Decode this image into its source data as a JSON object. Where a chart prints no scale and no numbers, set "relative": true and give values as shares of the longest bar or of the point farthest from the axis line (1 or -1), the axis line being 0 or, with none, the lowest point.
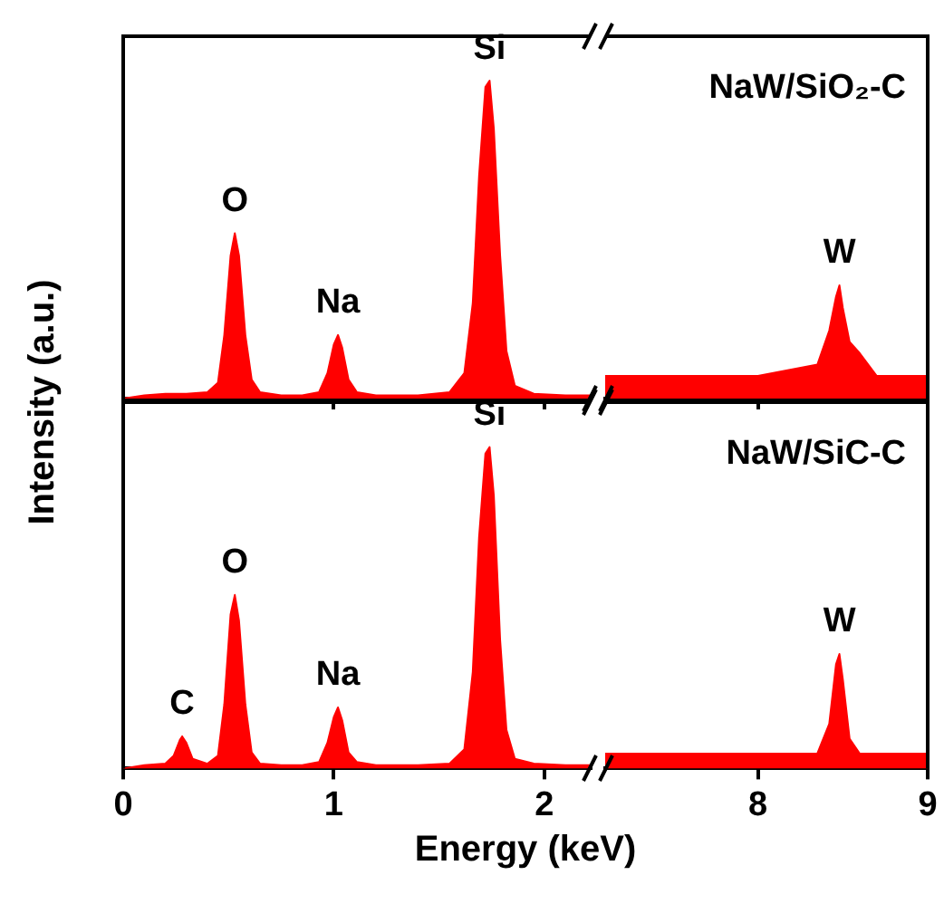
{
  "chart_data": [
    {
      "type": "area",
      "ylabel": "Intensity (a.u.)",
      "relative": true,
      "tick_labels": false,
      "x": [
        0,
        0.1,
        0.2,
        0.3,
        0.4,
        0.45,
        0.48,
        0.51,
        0.53,
        0.55,
        0.58,
        0.61,
        0.65,
        0.75,
        0.85,
        0.93,
        0.97,
        1.0,
        1.02,
        1.04,
        1.07,
        1.11,
        1.2,
        1.4,
        1.55,
        1.62,
        1.66,
        1.69,
        1.72,
        1.74,
        1.76,
        1.79,
        1.82,
        1.86,
        1.95,
        2.1,
        2.22
      ],
      "series": [
        {
          "color": "#ff0000",
          "values": [
            0,
            0.01,
            0.015,
            0.015,
            0.02,
            0.05,
            0.2,
            0.45,
            0.52,
            0.45,
            0.2,
            0.06,
            0.02,
            0.01,
            0.01,
            0.02,
            0.08,
            0.17,
            0.2,
            0.16,
            0.06,
            0.02,
            0.01,
            0.01,
            0.02,
            0.08,
            0.3,
            0.7,
            0.98,
            1,
            0.85,
            0.45,
            0.15,
            0.04,
            0.015,
            0.01,
            0.01
          ]
        }
      ],
      "xlim": [
        0,
        2.22
      ],
      "xticks": [
        0,
        1,
        2
      ],
      "annotations": [
        {
          "text": "O",
          "x": 0.53,
          "y": 0.52
        },
        {
          "text": "Na",
          "x": 1.02,
          "y": 0.2
        },
        {
          "text": "Si",
          "x": 1.74,
          "y": 1
        }
      ]
    },
    {
      "type": "area",
      "title": "NaW/SiO₂-C",
      "relative": true,
      "tick_labels": false,
      "x": [
        7.1,
        8.0,
        8.35,
        8.42,
        8.46,
        8.48,
        8.5,
        8.54,
        8.6,
        8.7,
        9.0
      ],
      "series": [
        {
          "color": "#ff0000",
          "values": [
            0.2,
            0.2,
            0.3,
            0.6,
            0.9,
            1,
            0.8,
            0.5,
            0.4,
            0.2,
            0.2
          ]
        }
      ],
      "xlim": [
        7.1,
        9
      ],
      "xticks": [
        8,
        9
      ],
      "annotations": [
        {
          "text": "W",
          "x": 8.48,
          "y": 1
        }
      ]
    },
    {
      "type": "area",
      "xlabel": "Energy (keV)",
      "relative": true,
      "tick_labels": "x",
      "x": [
        0,
        0.1,
        0.2,
        0.24,
        0.27,
        0.28,
        0.3,
        0.33,
        0.4,
        0.45,
        0.48,
        0.51,
        0.53,
        0.55,
        0.58,
        0.61,
        0.65,
        0.75,
        0.85,
        0.93,
        0.97,
        1.0,
        1.02,
        1.04,
        1.07,
        1.11,
        1.2,
        1.4,
        1.55,
        1.62,
        1.66,
        1.69,
        1.72,
        1.74,
        1.76,
        1.79,
        1.82,
        1.86,
        1.95,
        2.1,
        2.22
      ],
      "series": [
        {
          "color": "#ff0000",
          "values": [
            0,
            0.01,
            0.015,
            0.04,
            0.09,
            0.1,
            0.08,
            0.03,
            0.015,
            0.04,
            0.2,
            0.48,
            0.54,
            0.46,
            0.2,
            0.05,
            0.015,
            0.01,
            0.01,
            0.02,
            0.08,
            0.16,
            0.19,
            0.15,
            0.05,
            0.02,
            0.01,
            0.01,
            0.015,
            0.06,
            0.3,
            0.72,
            0.98,
            1,
            0.85,
            0.4,
            0.12,
            0.03,
            0.015,
            0.01,
            0.01
          ]
        }
      ],
      "xlim": [
        0,
        2.22
      ],
      "xticks": [
        0,
        1,
        2
      ],
      "annotations": [
        {
          "text": "C",
          "x": 0.28,
          "y": 0.1
        },
        {
          "text": "O",
          "x": 0.53,
          "y": 0.54
        },
        {
          "text": "Na",
          "x": 1.02,
          "y": 0.19
        },
        {
          "text": "Si",
          "x": 1.74,
          "y": 1
        }
      ]
    },
    {
      "type": "area",
      "title": "NaW/SiC-C",
      "relative": true,
      "tick_labels": "x",
      "x": [
        7.1,
        8.0,
        8.35,
        8.42,
        8.46,
        8.48,
        8.5,
        8.54,
        8.6,
        8.7,
        9.0
      ],
      "series": [
        {
          "color": "#ff0000",
          "values": [
            0.13,
            0.13,
            0.13,
            0.39,
            0.91,
            1,
            0.78,
            0.26,
            0.13,
            0.13,
            0.13
          ]
        }
      ],
      "xlim": [
        7.1,
        9
      ],
      "xticks": [
        8,
        9
      ],
      "annotations": [
        {
          "text": "W",
          "x": 8.48,
          "y": 1
        }
      ]
    }
  ]
}
